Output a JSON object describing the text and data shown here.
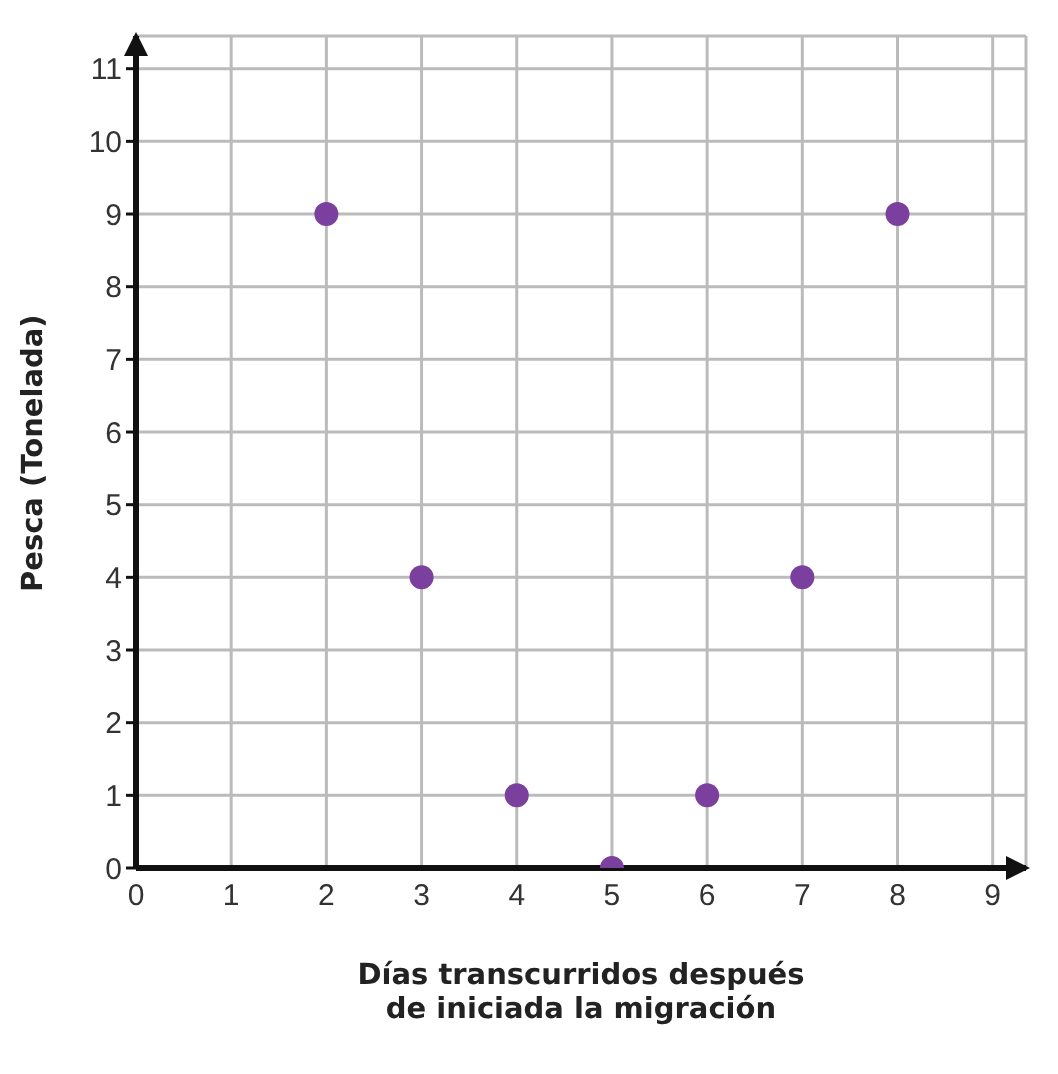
{
  "chart_data": {
    "type": "scatter",
    "xlabel": "Días transcurridos después\nde iniciada la migración",
    "ylabel": "Pesca (Tonelada)",
    "x": [
      2,
      3,
      4,
      5,
      6,
      7,
      8
    ],
    "series": [
      {
        "color": "#7b3f9e",
        "values": [
          9,
          4,
          1,
          0,
          1,
          4,
          9
        ]
      }
    ],
    "xlim": [
      0,
      9.35
    ],
    "ylim": [
      0,
      11.45
    ],
    "xticks": [
      0,
      1,
      2,
      3,
      4,
      5,
      6,
      7,
      8,
      9
    ],
    "yticks": [
      0,
      1,
      2,
      3,
      4,
      5,
      6,
      7,
      8,
      9,
      10,
      11
    ],
    "grid": true,
    "marker": "circle",
    "legend": false
  }
}
